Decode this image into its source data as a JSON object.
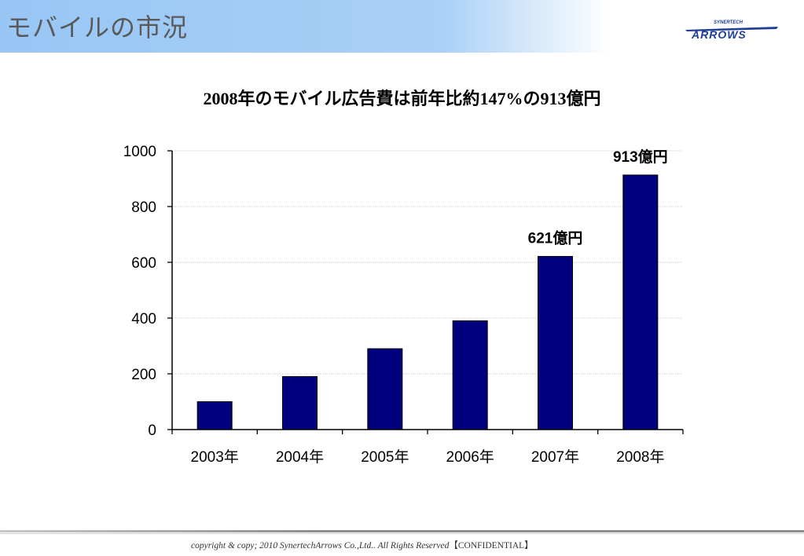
{
  "header": {
    "title": "モバイルの市況",
    "logo_small_text": "SYNERTECH",
    "logo_text": "ARROWS"
  },
  "colors": {
    "header_gradient_start": "#98c6f5",
    "bar_fill": "#00007f",
    "logo_blue": "#1f3f96"
  },
  "chart_data": {
    "type": "bar",
    "title": "2008年のモバイル広告費は前年比約147%の913億円",
    "categories": [
      "2003年",
      "2004年",
      "2005年",
      "2006年",
      "2007年",
      "2008年"
    ],
    "values": [
      100,
      190,
      290,
      390,
      621,
      913
    ],
    "data_labels": [
      "",
      "",
      "",
      "",
      "621億円",
      "913億円"
    ],
    "ylim": [
      0,
      1000
    ],
    "yticks": [
      0,
      200,
      400,
      600,
      800,
      1000
    ],
    "xlabel": "",
    "ylabel": "",
    "grid": true,
    "legend": "none"
  },
  "footer": {
    "copyright": "copyright & copy; 2010 SynertechArrows Co.,Ltd.. All Rights Reserved",
    "confidential": "【CONFIDENTIAL】"
  }
}
